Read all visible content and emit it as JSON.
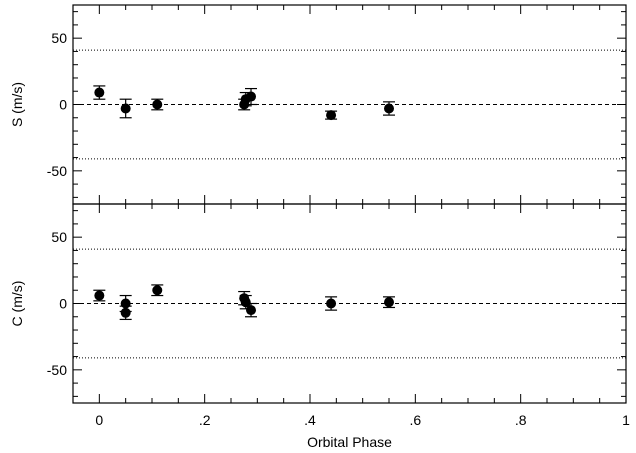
{
  "chart_data": [
    {
      "type": "scatter",
      "name_key": "s-panel",
      "ylabel": "S (m/s)",
      "xlabel": "",
      "xlim": [
        -0.05,
        1.0
      ],
      "ylim": [
        -75,
        75
      ],
      "yticks_major": [
        50,
        0,
        -50
      ],
      "ytick_labels": [
        "50",
        "0",
        "-50"
      ],
      "yticks_minor": [
        -70,
        -60,
        -40,
        -30,
        -20,
        -10,
        10,
        20,
        30,
        40,
        60,
        70
      ],
      "xticks_major": [
        0,
        0.2,
        0.4,
        0.6,
        0.8,
        1.0
      ],
      "xtick_labels": [
        "",
        "",
        "",
        "",
        "",
        ""
      ],
      "xticks_minor": [
        0.05,
        0.1,
        0.15,
        0.25,
        0.3,
        0.35,
        0.45,
        0.5,
        0.55,
        0.65,
        0.7,
        0.75,
        0.85,
        0.9,
        0.95
      ],
      "reference_lines": [
        {
          "y": 0,
          "style": "dashed"
        },
        {
          "y": 41,
          "style": "dotted"
        },
        {
          "y": -41,
          "style": "dotted"
        }
      ],
      "points": [
        {
          "x": 0.0,
          "y": 9,
          "err": 5
        },
        {
          "x": 0.05,
          "y": -3,
          "err": 7
        },
        {
          "x": 0.11,
          "y": 0,
          "err": 4
        },
        {
          "x": 0.275,
          "y": 0,
          "err": 4
        },
        {
          "x": 0.278,
          "y": 4,
          "err": 5
        },
        {
          "x": 0.288,
          "y": 6,
          "err": 6
        },
        {
          "x": 0.44,
          "y": -8,
          "err": 3
        },
        {
          "x": 0.55,
          "y": -3,
          "err": 5
        }
      ]
    },
    {
      "type": "scatter",
      "name_key": "c-panel",
      "ylabel": "C (m/s)",
      "xlabel": "Orbital Phase",
      "xlim": [
        -0.05,
        1.0
      ],
      "ylim": [
        -75,
        75
      ],
      "yticks_major": [
        50,
        0,
        -50
      ],
      "ytick_labels": [
        "50",
        "0",
        "-50"
      ],
      "yticks_minor": [
        -70,
        -60,
        -40,
        -30,
        -20,
        -10,
        10,
        20,
        30,
        40,
        60,
        70
      ],
      "xticks_major": [
        0,
        0.2,
        0.4,
        0.6,
        0.8,
        1.0
      ],
      "xtick_labels": [
        "0",
        ".2",
        ".4",
        ".6",
        ".8",
        "1"
      ],
      "xticks_minor": [
        0.05,
        0.1,
        0.15,
        0.25,
        0.3,
        0.35,
        0.45,
        0.5,
        0.55,
        0.65,
        0.7,
        0.75,
        0.85,
        0.9,
        0.95
      ],
      "reference_lines": [
        {
          "y": 0,
          "style": "dashed"
        },
        {
          "y": 41,
          "style": "dotted"
        },
        {
          "y": -41,
          "style": "dotted"
        }
      ],
      "points": [
        {
          "x": 0.0,
          "y": 6,
          "err": 4
        },
        {
          "x": 0.05,
          "y": 0,
          "err": 6
        },
        {
          "x": 0.05,
          "y": -7,
          "err": 5
        },
        {
          "x": 0.11,
          "y": 10,
          "err": 4
        },
        {
          "x": 0.275,
          "y": 4,
          "err": 5
        },
        {
          "x": 0.278,
          "y": 1,
          "err": 5
        },
        {
          "x": 0.288,
          "y": -5,
          "err": 5
        },
        {
          "x": 0.44,
          "y": 0,
          "err": 5
        },
        {
          "x": 0.55,
          "y": 1,
          "err": 4
        }
      ]
    }
  ]
}
